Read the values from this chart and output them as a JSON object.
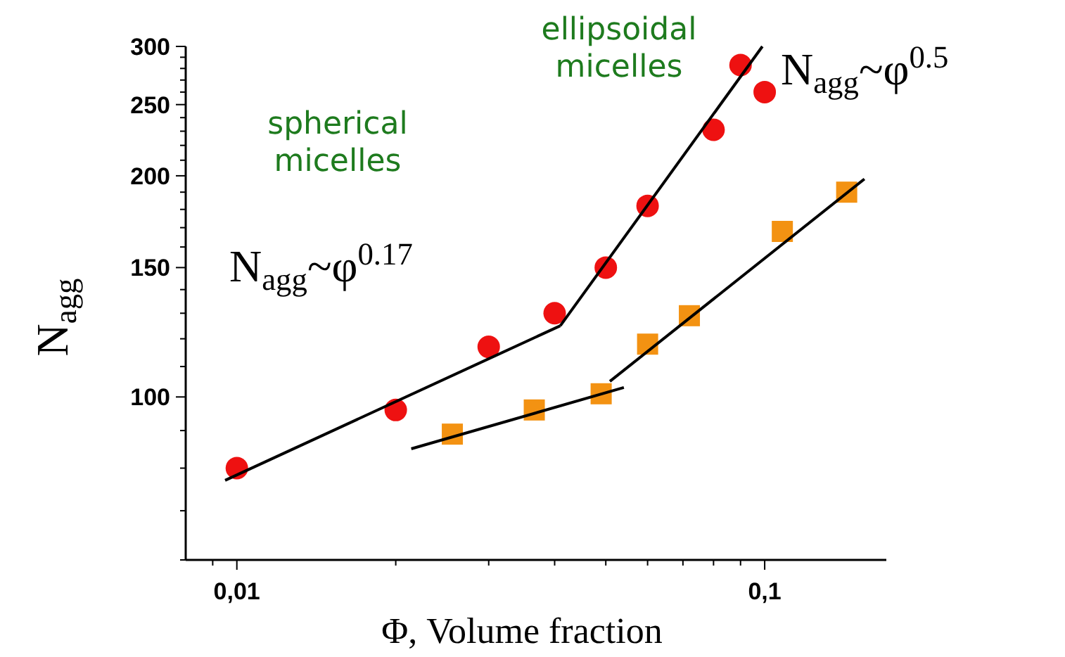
{
  "chart_data": {
    "type": "scatter",
    "xlabel": "Φ, Volume fraction",
    "ylabel": "N$_{agg}$",
    "log": "xy",
    "xlim": [
      0.008,
      0.17
    ],
    "ylim": [
      60,
      300
    ],
    "xticks": [
      {
        "value": 0.009,
        "label": null
      },
      {
        "value": 0.01,
        "label": "0,01"
      },
      {
        "value": 0.02,
        "label": null
      },
      {
        "value": 0.03,
        "label": null
      },
      {
        "value": 0.04,
        "label": null
      },
      {
        "value": 0.05,
        "label": null
      },
      {
        "value": 0.06,
        "label": null
      },
      {
        "value": 0.07,
        "label": null
      },
      {
        "value": 0.08,
        "label": null
      },
      {
        "value": 0.09,
        "label": null
      },
      {
        "value": 0.1,
        "label": "0,1"
      }
    ],
    "yticks": [
      {
        "value": 60,
        "label": null
      },
      {
        "value": 70,
        "label": null
      },
      {
        "value": 80,
        "label": null
      },
      {
        "value": 90,
        "label": null
      },
      100,
      {
        "value": 110,
        "label": null
      },
      {
        "value": 120,
        "label": null
      },
      {
        "value": 130,
        "label": null
      },
      {
        "value": 140,
        "label": null
      },
      150,
      {
        "value": 160,
        "label": null
      },
      {
        "value": 170,
        "label": null
      },
      {
        "value": 180,
        "label": null
      },
      {
        "value": 190,
        "label": null
      },
      200,
      {
        "value": 210,
        "label": null
      },
      {
        "value": 220,
        "label": null
      },
      {
        "value": 230,
        "label": null
      },
      {
        "value": 240,
        "label": null
      },
      250,
      {
        "value": 260,
        "label": null
      },
      {
        "value": 270,
        "label": null
      },
      {
        "value": 280,
        "label": null
      },
      {
        "value": 290,
        "label": null
      },
      300
    ],
    "grid": false,
    "series": [
      {
        "marker": "circle",
        "color": "#ee1111",
        "x": [
          0.01,
          0.02,
          0.03,
          0.04,
          0.05,
          0.06,
          0.08,
          0.09,
          0.1
        ],
        "values": [
          80,
          96,
          117,
          130,
          150,
          182,
          231,
          283,
          260
        ]
      },
      {
        "marker": "square",
        "color": "#f39212",
        "x": [
          0.0256,
          0.0366,
          0.049,
          0.06,
          0.072,
          0.108,
          0.143
        ],
        "values": [
          89,
          96,
          101,
          118,
          129,
          168,
          190
        ]
      },
      {
        "type": "line",
        "marker": "none",
        "color": "#000000",
        "x": [
          0.0095,
          0.041
        ],
        "values": [
          77,
          125
        ]
      },
      {
        "type": "line",
        "marker": "none",
        "color": "#000000",
        "x": [
          0.041,
          0.099
        ],
        "values": [
          125,
          300
        ]
      },
      {
        "type": "line",
        "marker": "none",
        "color": "#000000",
        "x": [
          0.0214,
          0.0541
        ],
        "values": [
          85,
          103
        ]
      },
      {
        "type": "line",
        "marker": "none",
        "color": "#000000",
        "x": [
          0.0509,
          0.1545
        ],
        "values": [
          105,
          198
        ]
      }
    ],
    "annotations": [
      "spherical\nmicelles",
      "ellipsoidal\nmicelles",
      "N$_{agg}$~φ$^{0.17}$",
      "N$_{agg}$~φ$^{0.5}$"
    ]
  }
}
